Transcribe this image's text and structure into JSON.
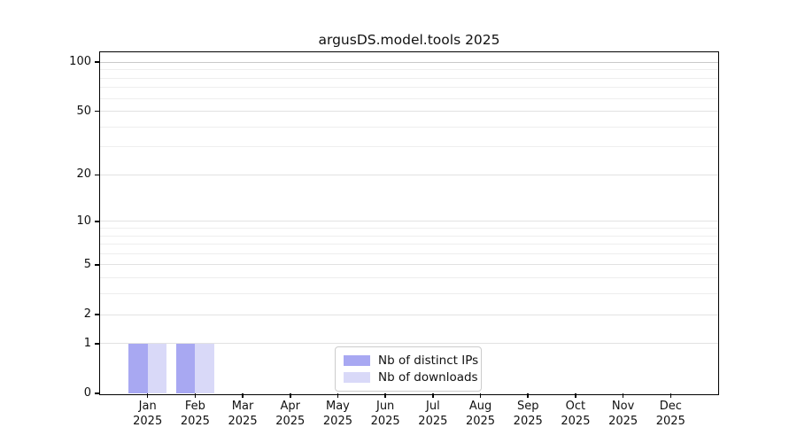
{
  "title": "argusDS.model.tools 2025",
  "chart_data": {
    "type": "bar",
    "title": "argusDS.model.tools 2025",
    "xlabel": "",
    "ylabel": "",
    "categories": [
      "Jan",
      "Feb",
      "Mar",
      "Apr",
      "May",
      "Jun",
      "Jul",
      "Aug",
      "Sep",
      "Oct",
      "Nov",
      "Dec"
    ],
    "year_label": "2025",
    "series": [
      {
        "name": "Nb of distinct IPs",
        "color": "#a8a8f2",
        "values": [
          1,
          1,
          0,
          0,
          0,
          0,
          0,
          0,
          0,
          0,
          0,
          0
        ]
      },
      {
        "name": "Nb of downloads",
        "color": "#d9d9f8",
        "values": [
          1,
          1,
          0,
          0,
          0,
          0,
          0,
          0,
          0,
          0,
          0,
          0
        ]
      }
    ],
    "yscale": "log1p",
    "ylim": [
      0,
      115
    ],
    "yticks_major": [
      0,
      1,
      2,
      5,
      10,
      20,
      50,
      100
    ],
    "yticks_minor": [
      3,
      4,
      6,
      7,
      8,
      9,
      30,
      40,
      60,
      70,
      80,
      90
    ],
    "grid": true,
    "legend_position": "lower center inside plot",
    "colors": {
      "grid_major": "#e2e2e2",
      "grid_minor": "#eeeeee",
      "grid_top": "#c9c9c9",
      "axis": "#000000"
    }
  }
}
